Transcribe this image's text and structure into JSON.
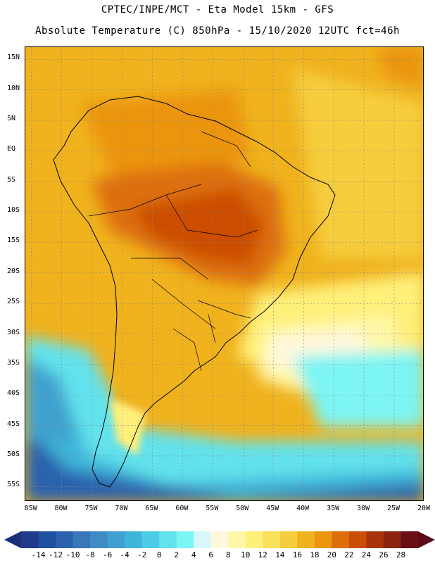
{
  "header": {
    "line1": "CPTEC/INPE/MCT -  Eta Model 15km - GFS",
    "line2": "Absolute Temperature (C) 850hPa - 15/10/2020 12UTC fct=46h"
  },
  "map": {
    "lat_labels": [
      "15N",
      "10N",
      "5N",
      "EQ",
      "5S",
      "10S",
      "15S",
      "20S",
      "25S",
      "30S",
      "35S",
      "40S",
      "45S",
      "50S",
      "55S"
    ],
    "lon_labels": [
      "85W",
      "80W",
      "75W",
      "70W",
      "65W",
      "60W",
      "55W",
      "50W",
      "45W",
      "40W",
      "35W",
      "30W",
      "25W",
      "20W"
    ],
    "lat_values": [
      15,
      10,
      5,
      0,
      -5,
      -10,
      -15,
      -20,
      -25,
      -30,
      -35,
      -40,
      -45,
      -50,
      -55
    ],
    "lon_values": [
      -85,
      -80,
      -75,
      -70,
      -65,
      -60,
      -55,
      -50,
      -45,
      -40,
      -35,
      -30,
      -25,
      -20
    ],
    "lat_range": [
      -57.5,
      17
    ],
    "lon_range": [
      -86,
      -20
    ]
  },
  "colorbar": {
    "ticks": [
      "-14",
      "-12",
      "-10",
      "-8",
      "-6",
      "-4",
      "-2",
      "0",
      "2",
      "4",
      "6",
      "8",
      "10",
      "12",
      "14",
      "16",
      "18",
      "20",
      "22",
      "24",
      "26",
      "28"
    ],
    "colors": [
      "#203b8a",
      "#1f4f9f",
      "#2c62ad",
      "#3877ba",
      "#3f8bc5",
      "#41a0cf",
      "#3fb5da",
      "#4ccce6",
      "#62e2ec",
      "#7cf5f4",
      "#d8f7fb",
      "#fff8dc",
      "#fff7a8",
      "#fff07a",
      "#fbe25c",
      "#f6cd3e",
      "#f0b21d",
      "#eb9410",
      "#dd6f08",
      "#cc4e06",
      "#a8340c",
      "#8a2410",
      "#6a0f16"
    ],
    "under_color": "#1a2f78",
    "over_color": "#5a0a18"
  }
}
